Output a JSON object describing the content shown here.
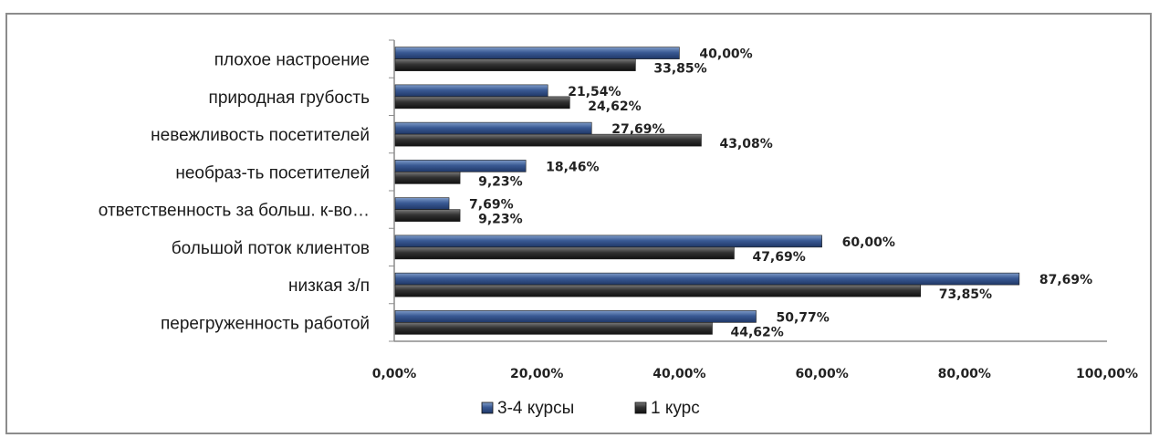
{
  "chart_data": {
    "type": "bar",
    "orientation": "horizontal",
    "categories": [
      "плохое настроение",
      "природная грубость",
      "невежливость посетителей",
      "необраз-ть посетителей",
      "ответственность за больш. к-во…",
      "большой поток клиентов",
      "низкая з/п",
      "перегруженность работой"
    ],
    "series": [
      {
        "name": "3-4 курсы",
        "color": "#2f4f82",
        "values": [
          40.0,
          21.54,
          27.69,
          18.46,
          7.69,
          60.0,
          87.69,
          50.77
        ],
        "labels": [
          "40,00%",
          "21,54%",
          "27,69%",
          "18,46%",
          "7,69%",
          "60,00%",
          "87,69%",
          "50,77%"
        ]
      },
      {
        "name": "1 курс",
        "color": "#262626",
        "values": [
          33.85,
          24.62,
          43.08,
          9.23,
          9.23,
          47.69,
          73.85,
          44.62
        ],
        "labels": [
          "33,85%",
          "24,62%",
          "43,08%",
          "9,23%",
          "9,23%",
          "47,69%",
          "73,85%",
          "44,62%"
        ]
      }
    ],
    "xlim": [
      0,
      100
    ],
    "x_ticks": [
      "0,00%",
      "20,00%",
      "40,00%",
      "60,00%",
      "80,00%",
      "100,00%"
    ],
    "title": "",
    "xlabel": "",
    "ylabel": "",
    "grid": false,
    "legend_position": "bottom"
  }
}
